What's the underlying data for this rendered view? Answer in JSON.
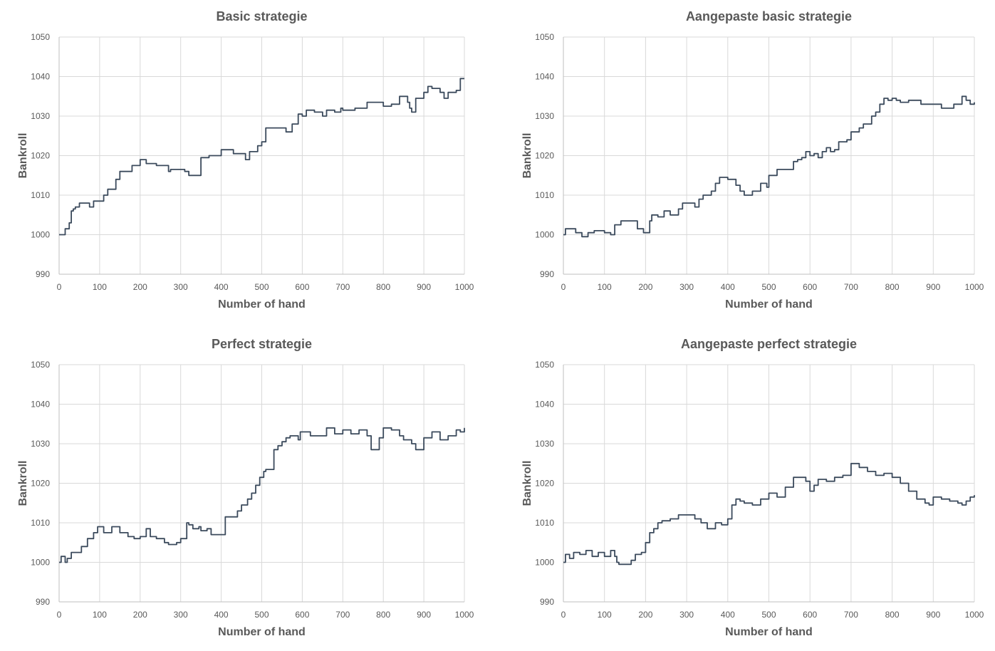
{
  "chart_data": [
    {
      "type": "line",
      "title": "Basic strategie",
      "xlabel": "Number of hand",
      "ylabel": "Bankroll",
      "xlim": [
        0,
        1000
      ],
      "ylim": [
        990,
        1050
      ],
      "xticks": [
        0,
        100,
        200,
        300,
        400,
        500,
        600,
        700,
        800,
        900,
        1000
      ],
      "yticks": [
        990,
        1000,
        1010,
        1020,
        1030,
        1040,
        1050
      ],
      "grid": true,
      "line_color": "#3b4a5c",
      "series": [
        {
          "x": [
            0,
            15,
            25,
            30,
            35,
            40,
            50,
            75,
            85,
            110,
            120,
            140,
            150,
            180,
            200,
            215,
            240,
            270,
            275,
            300,
            310,
            320,
            350,
            370,
            400,
            430,
            450,
            460,
            470,
            480,
            490,
            500,
            510,
            530,
            560,
            575,
            590,
            600,
            610,
            630,
            650,
            660,
            680,
            695,
            700,
            730,
            760,
            780,
            800,
            820,
            840,
            860,
            865,
            870,
            880,
            900,
            910,
            920,
            940,
            950,
            960,
            980,
            990,
            1000
          ],
          "y": [
            1000,
            1001.5,
            1003,
            1006,
            1006.5,
            1007,
            1008,
            1007,
            1008.5,
            1010,
            1011.5,
            1014,
            1016,
            1017.5,
            1019,
            1018,
            1017.5,
            1016,
            1016.5,
            1016.5,
            1016,
            1015,
            1019.5,
            1020,
            1021.5,
            1020.5,
            1020.5,
            1019,
            1021,
            1021,
            1022.5,
            1023.5,
            1027,
            1027,
            1026,
            1028,
            1030.5,
            1030,
            1031.5,
            1031,
            1030,
            1031.5,
            1031,
            1032,
            1031.5,
            1032,
            1033.5,
            1033.5,
            1032.5,
            1033,
            1035,
            1033.5,
            1032,
            1031,
            1034.5,
            1036,
            1037.5,
            1037,
            1036,
            1034.5,
            1036,
            1036.5,
            1039.5,
            1039.5
          ]
        }
      ]
    },
    {
      "type": "line",
      "title": "Aangepaste basic strategie",
      "xlabel": "Number of hand",
      "ylabel": "Bankroll",
      "xlim": [
        0,
        1000
      ],
      "ylim": [
        990,
        1050
      ],
      "xticks": [
        0,
        100,
        200,
        300,
        400,
        500,
        600,
        700,
        800,
        900,
        1000
      ],
      "yticks": [
        990,
        1000,
        1010,
        1020,
        1030,
        1040,
        1050
      ],
      "grid": true,
      "line_color": "#3b4a5c",
      "series": [
        {
          "x": [
            0,
            5,
            30,
            45,
            60,
            75,
            100,
            115,
            125,
            140,
            180,
            195,
            210,
            215,
            230,
            245,
            260,
            280,
            290,
            300,
            320,
            330,
            340,
            360,
            370,
            380,
            400,
            410,
            420,
            430,
            440,
            460,
            480,
            495,
            500,
            520,
            540,
            560,
            570,
            580,
            590,
            600,
            610,
            620,
            630,
            640,
            650,
            660,
            670,
            690,
            700,
            720,
            730,
            750,
            760,
            770,
            780,
            790,
            800,
            810,
            820,
            840,
            870,
            900,
            920,
            950,
            970,
            980,
            990,
            1000
          ],
          "y": [
            1000,
            1001.5,
            1000.5,
            999.5,
            1000.5,
            1001,
            1000.5,
            1000,
            1002.5,
            1003.5,
            1001.5,
            1000.5,
            1003.5,
            1005,
            1004.5,
            1006,
            1005,
            1006.5,
            1008,
            1008,
            1007,
            1009,
            1010,
            1011,
            1013,
            1014.5,
            1014,
            1014,
            1012.5,
            1011,
            1010,
            1011,
            1013,
            1012,
            1015,
            1016.5,
            1016.5,
            1018.5,
            1019,
            1019.5,
            1021,
            1020,
            1020.5,
            1019.5,
            1021,
            1022,
            1021,
            1021.5,
            1023.5,
            1024,
            1026,
            1027,
            1028,
            1030,
            1031,
            1033,
            1034.5,
            1034,
            1034.5,
            1034,
            1033.5,
            1034,
            1033,
            1033,
            1032,
            1033,
            1035,
            1034,
            1033,
            1033.5
          ]
        }
      ]
    },
    {
      "type": "line",
      "title": "Perfect strategie",
      "xlabel": "Number of hand",
      "ylabel": "Bankroll",
      "xlim": [
        0,
        1000
      ],
      "ylim": [
        990,
        1050
      ],
      "xticks": [
        0,
        100,
        200,
        300,
        400,
        500,
        600,
        700,
        800,
        900,
        1000
      ],
      "yticks": [
        990,
        1000,
        1010,
        1020,
        1030,
        1040,
        1050
      ],
      "grid": true,
      "line_color": "#3b4a5c",
      "series": [
        {
          "x": [
            0,
            5,
            15,
            20,
            30,
            55,
            70,
            85,
            95,
            110,
            130,
            150,
            170,
            185,
            200,
            215,
            225,
            240,
            260,
            270,
            290,
            300,
            315,
            320,
            330,
            345,
            350,
            365,
            375,
            400,
            410,
            430,
            440,
            450,
            465,
            475,
            485,
            495,
            505,
            510,
            530,
            540,
            550,
            560,
            570,
            590,
            595,
            600,
            620,
            660,
            680,
            700,
            720,
            740,
            760,
            770,
            790,
            800,
            820,
            840,
            850,
            870,
            880,
            900,
            920,
            940,
            960,
            980,
            990,
            1000
          ],
          "y": [
            1000,
            1001.5,
            1000,
            1001,
            1002.5,
            1004,
            1006,
            1007.5,
            1009,
            1007.5,
            1009,
            1007.5,
            1006.5,
            1006,
            1006.5,
            1008.5,
            1006.5,
            1006,
            1005,
            1004.5,
            1005,
            1006,
            1010,
            1009.5,
            1008.5,
            1009,
            1008,
            1008.5,
            1007,
            1007,
            1011.5,
            1011.5,
            1013,
            1014.5,
            1016,
            1017.5,
            1019.5,
            1021.5,
            1023,
            1023.5,
            1028.5,
            1029.5,
            1030.5,
            1031.5,
            1032,
            1031,
            1033,
            1033,
            1032,
            1034,
            1032.5,
            1033.5,
            1032.5,
            1033.5,
            1032,
            1028.5,
            1031.5,
            1034,
            1033.5,
            1032,
            1031,
            1030,
            1028.5,
            1031.5,
            1033,
            1031,
            1032,
            1033.5,
            1033,
            1034
          ]
        }
      ]
    },
    {
      "type": "line",
      "title": "Aangepaste perfect strategie",
      "xlabel": "Number of hand",
      "ylabel": "Bankroll",
      "xlim": [
        0,
        1000
      ],
      "ylim": [
        990,
        1050
      ],
      "xticks": [
        0,
        100,
        200,
        300,
        400,
        500,
        600,
        700,
        800,
        900,
        1000
      ],
      "yticks": [
        990,
        1000,
        1010,
        1020,
        1030,
        1040,
        1050
      ],
      "grid": true,
      "line_color": "#3b4a5c",
      "series": [
        {
          "x": [
            0,
            5,
            15,
            25,
            40,
            55,
            70,
            85,
            100,
            115,
            125,
            130,
            135,
            165,
            175,
            190,
            200,
            210,
            220,
            230,
            240,
            260,
            280,
            300,
            320,
            335,
            350,
            370,
            385,
            400,
            410,
            420,
            430,
            440,
            460,
            480,
            500,
            520,
            540,
            560,
            590,
            600,
            610,
            620,
            640,
            660,
            680,
            700,
            720,
            740,
            760,
            780,
            800,
            820,
            840,
            860,
            880,
            890,
            900,
            920,
            940,
            960,
            970,
            980,
            990,
            1000
          ],
          "y": [
            1000,
            1002,
            1001,
            1002.5,
            1002,
            1003,
            1001.5,
            1002.5,
            1001.5,
            1003,
            1001.5,
            1000,
            999.5,
            1000.5,
            1002,
            1002.5,
            1005,
            1007.5,
            1008.5,
            1010,
            1010.5,
            1011,
            1012,
            1012,
            1011,
            1010,
            1008.5,
            1010,
            1009.5,
            1011,
            1014.5,
            1016,
            1015.5,
            1015,
            1014.5,
            1016,
            1017.5,
            1016.5,
            1019,
            1021.5,
            1020.5,
            1018,
            1019.5,
            1021,
            1020.5,
            1021.5,
            1022,
            1025,
            1024,
            1023,
            1022,
            1022.5,
            1021.5,
            1020,
            1018,
            1016,
            1015,
            1014.5,
            1016.5,
            1016,
            1015.5,
            1015,
            1014.5,
            1015.5,
            1016.5,
            1017
          ]
        }
      ]
    }
  ]
}
